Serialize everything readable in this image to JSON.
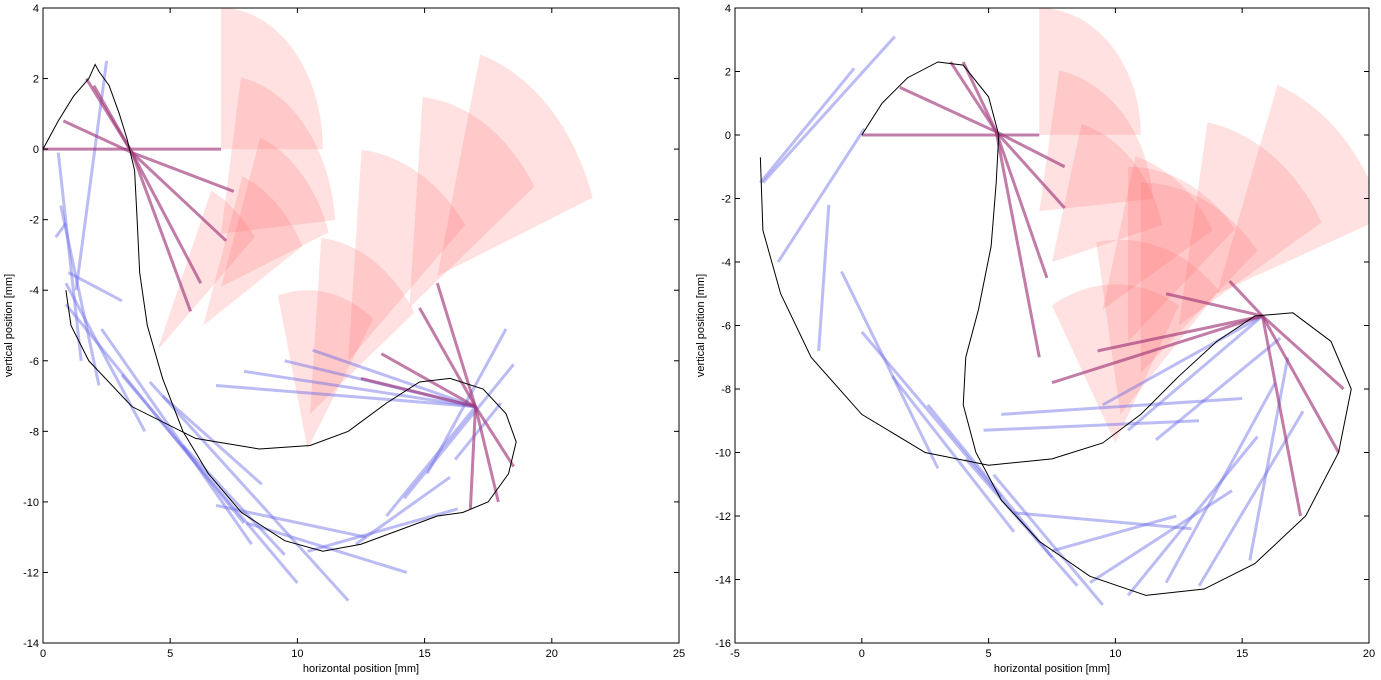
{
  "colors": {
    "background": "#ffffff",
    "axis": "#000000",
    "curve": "#000000",
    "blue_lines": "#6a6ae8",
    "purple_lines": "#a0387a",
    "red_wedges": "#ff6b6b"
  },
  "chart_data": [
    {
      "type": "line",
      "xlabel": "horizontal position [mm]",
      "ylabel": "vertical position [mm]",
      "xlim": [
        0,
        25
      ],
      "ylim": [
        -14,
        4
      ],
      "xticks": [
        0,
        5,
        10,
        15,
        20,
        25
      ],
      "yticks": [
        4,
        2,
        0,
        -2,
        -4,
        -6,
        -8,
        -10,
        -12,
        -14
      ],
      "grid": false,
      "curve": [
        [
          0,
          0
        ],
        [
          0.6,
          0.8
        ],
        [
          1.2,
          1.5
        ],
        [
          1.8,
          2.0
        ],
        [
          2.05,
          2.4
        ],
        [
          2.2,
          2.2
        ],
        [
          2.6,
          1.8
        ],
        [
          3.0,
          1.0
        ],
        [
          3.3,
          0.3
        ],
        [
          3.6,
          -0.6
        ],
        [
          3.7,
          -2
        ],
        [
          3.8,
          -3.5
        ],
        [
          4.1,
          -5
        ],
        [
          4.7,
          -6.5
        ],
        [
          5.5,
          -8
        ],
        [
          6.5,
          -9.2
        ],
        [
          7.8,
          -10.3
        ],
        [
          9.5,
          -11.1
        ],
        [
          11,
          -11.4
        ],
        [
          12.5,
          -11.2
        ],
        [
          14,
          -10.8
        ],
        [
          15.5,
          -10.4
        ],
        [
          16.5,
          -10.3
        ],
        [
          17.5,
          -10
        ],
        [
          18.3,
          -9.2
        ],
        [
          18.6,
          -8.3
        ],
        [
          18.2,
          -7.5
        ],
        [
          17.3,
          -6.8
        ],
        [
          16,
          -6.5
        ],
        [
          14.8,
          -6.6
        ],
        [
          13.5,
          -7.2
        ],
        [
          12,
          -8
        ],
        [
          10.5,
          -8.4
        ],
        [
          8.5,
          -8.5
        ],
        [
          6,
          -8.2
        ],
        [
          3.5,
          -7.3
        ],
        [
          1.8,
          -6
        ],
        [
          1.1,
          -5
        ],
        [
          0.9,
          -4
        ]
      ],
      "cones": [
        {
          "apex": [
            7,
            0
          ],
          "r": 4,
          "a1": 0,
          "a2": 90
        },
        {
          "apex": [
            7,
            -2.4
          ],
          "r": 4.5,
          "a1": 5,
          "a2": 80
        },
        {
          "apex": [
            7,
            -3.9
          ],
          "r": 4.5,
          "a1": 20,
          "a2": 70
        },
        {
          "apex": [
            6.3,
            -5
          ],
          "r": 4.5,
          "a1": 30,
          "a2": 70
        },
        {
          "apex": [
            4.5,
            -5.7
          ],
          "r": 5,
          "a1": 40,
          "a2": 65
        },
        {
          "apex": [
            10.4,
            -8.5
          ],
          "r": 4.5,
          "a1": 55,
          "a2": 105
        },
        {
          "apex": [
            10.5,
            -7.5
          ],
          "r": 5,
          "a1": 35,
          "a2": 85
        },
        {
          "apex": [
            12,
            -6
          ],
          "r": 6,
          "a1": 40,
          "a2": 85
        },
        {
          "apex": [
            14.4,
            -4.5
          ],
          "r": 6,
          "a1": 35,
          "a2": 85
        },
        {
          "apex": [
            15.5,
            -3.6
          ],
          "r": 6.5,
          "a1": 20,
          "a2": 75
        }
      ],
      "purple_lines": [
        [
          [
            0,
            0
          ],
          [
            7,
            0
          ]
        ],
        [
          [
            3.5,
            -0.1
          ],
          [
            7.5,
            -1.2
          ]
        ],
        [
          [
            3.5,
            -0.1
          ],
          [
            2,
            1.8
          ]
        ],
        [
          [
            3.5,
            -0.1
          ],
          [
            1.7,
            2
          ]
        ],
        [
          [
            3.5,
            -0.1
          ],
          [
            0.8,
            0.8
          ]
        ],
        [
          [
            3.5,
            -0.1
          ],
          [
            7.2,
            -2.6
          ]
        ],
        [
          [
            3.5,
            -0.1
          ],
          [
            6.2,
            -3.8
          ]
        ],
        [
          [
            3.5,
            -0.1
          ],
          [
            5.8,
            -4.6
          ]
        ],
        [
          [
            17,
            -7.3
          ],
          [
            18.5,
            -9
          ]
        ],
        [
          [
            17,
            -7.3
          ],
          [
            17.9,
            -10
          ]
        ],
        [
          [
            17,
            -7.3
          ],
          [
            16.8,
            -10.2
          ]
        ],
        [
          [
            17,
            -7.3
          ],
          [
            15.5,
            -3.8
          ]
        ],
        [
          [
            17,
            -7.3
          ],
          [
            14.8,
            -4.5
          ]
        ],
        [
          [
            17,
            -7.3
          ],
          [
            13.3,
            -5.8
          ]
        ],
        [
          [
            17,
            -7.3
          ],
          [
            12.5,
            -6.5
          ]
        ]
      ],
      "blue_lines": [
        [
          [
            1.3,
            -4
          ],
          [
            2.5,
            2.5
          ]
        ],
        [
          [
            0.7,
            -1.6
          ],
          [
            2.2,
            -6.7
          ]
        ],
        [
          [
            0.9,
            -2.1
          ],
          [
            0.5,
            -2.5
          ]
        ],
        [
          [
            1,
            -3.5
          ],
          [
            3.1,
            -4.3
          ]
        ],
        [
          [
            0.6,
            -0.1
          ],
          [
            1.5,
            -6
          ]
        ],
        [
          [
            0.9,
            -3.8
          ],
          [
            4,
            -8
          ]
        ],
        [
          [
            0.9,
            -4.4
          ],
          [
            7.9,
            -10.6
          ]
        ],
        [
          [
            2.3,
            -5.1
          ],
          [
            8.2,
            -11.2
          ]
        ],
        [
          [
            3.1,
            -6.4
          ],
          [
            10,
            -12.3
          ]
        ],
        [
          [
            4.2,
            -6.6
          ],
          [
            12,
            -12.8
          ]
        ],
        [
          [
            4.7,
            -7
          ],
          [
            8.6,
            -9.5
          ]
        ],
        [
          [
            5.5,
            -8.4
          ],
          [
            9.5,
            -11.5
          ]
        ],
        [
          [
            6.8,
            -10.1
          ],
          [
            12.7,
            -11
          ]
        ],
        [
          [
            8,
            -10.6
          ],
          [
            14.3,
            -12
          ]
        ],
        [
          [
            10.4,
            -11.4
          ],
          [
            16.3,
            -10.2
          ]
        ],
        [
          [
            12.3,
            -11.2
          ],
          [
            16,
            -9.3
          ]
        ],
        [
          [
            13.5,
            -10.4
          ],
          [
            17,
            -7.3
          ]
        ],
        [
          [
            14.2,
            -9.9
          ],
          [
            18.5,
            -6.1
          ]
        ],
        [
          [
            15.1,
            -9.2
          ],
          [
            18.2,
            -5.1
          ]
        ],
        [
          [
            16.2,
            -8.8
          ],
          [
            18,
            -7.2
          ]
        ],
        [
          [
            17,
            -7.3
          ],
          [
            9.5,
            -6
          ]
        ],
        [
          [
            17,
            -7.3
          ],
          [
            10.6,
            -5.7
          ]
        ],
        [
          [
            17,
            -7.3
          ],
          [
            6.8,
            -6.7
          ]
        ],
        [
          [
            17,
            -7.3
          ],
          [
            7.9,
            -6.3
          ]
        ]
      ]
    },
    {
      "type": "line",
      "xlabel": "horizontal position [mm]",
      "ylabel": "vertical position [mm]",
      "xlim": [
        -5,
        20
      ],
      "ylim": [
        -16,
        4
      ],
      "xticks": [
        -5,
        0,
        5,
        10,
        15,
        20
      ],
      "yticks": [
        4,
        2,
        0,
        -2,
        -4,
        -6,
        -8,
        -10,
        -12,
        -14,
        -16
      ],
      "grid": false,
      "curve": [
        [
          0,
          0
        ],
        [
          0.8,
          1
        ],
        [
          1.8,
          1.8
        ],
        [
          3,
          2.3
        ],
        [
          4,
          2.2
        ],
        [
          5,
          1.2
        ],
        [
          5.4,
          0
        ],
        [
          5.3,
          -1.5
        ],
        [
          5.1,
          -3.5
        ],
        [
          4.6,
          -5.5
        ],
        [
          4.1,
          -7
        ],
        [
          4,
          -8.5
        ],
        [
          4.5,
          -10
        ],
        [
          5.5,
          -11.5
        ],
        [
          7,
          -12.8
        ],
        [
          9,
          -13.9
        ],
        [
          11.2,
          -14.5
        ],
        [
          13.5,
          -14.3
        ],
        [
          15.5,
          -13.5
        ],
        [
          17.5,
          -12
        ],
        [
          18.8,
          -10
        ],
        [
          19.3,
          -8
        ],
        [
          18.5,
          -6.5
        ],
        [
          17,
          -5.6
        ],
        [
          15.5,
          -5.7
        ],
        [
          14,
          -6.5
        ],
        [
          12.5,
          -7.6
        ],
        [
          11,
          -8.8
        ],
        [
          9.5,
          -9.7
        ],
        [
          7.5,
          -10.2
        ],
        [
          5,
          -10.4
        ],
        [
          2.5,
          -10
        ],
        [
          0,
          -8.8
        ],
        [
          -2,
          -7
        ],
        [
          -3.2,
          -5
        ],
        [
          -3.9,
          -3
        ],
        [
          -4,
          -0.7
        ]
      ],
      "cones": [
        {
          "apex": [
            7,
            0
          ],
          "r": 4,
          "a1": 0,
          "a2": 90
        },
        {
          "apex": [
            7,
            -2.4
          ],
          "r": 4.5,
          "a1": 5,
          "a2": 80
        },
        {
          "apex": [
            7.5,
            -4
          ],
          "r": 4.5,
          "a1": 15,
          "a2": 75
        },
        {
          "apex": [
            9.5,
            -5.5
          ],
          "r": 5,
          "a1": 30,
          "a2": 75
        },
        {
          "apex": [
            10.5,
            -6.5
          ],
          "r": 5.5,
          "a1": 40,
          "a2": 90
        },
        {
          "apex": [
            10,
            -9.7
          ],
          "r": 5,
          "a1": 60,
          "a2": 120
        },
        {
          "apex": [
            10.2,
            -8.8
          ],
          "r": 5.5,
          "a1": 45,
          "a2": 100
        },
        {
          "apex": [
            11,
            -7.5
          ],
          "r": 6,
          "a1": 40,
          "a2": 90
        },
        {
          "apex": [
            12.5,
            -6
          ],
          "r": 6.5,
          "a1": 30,
          "a2": 80
        },
        {
          "apex": [
            14,
            -5
          ],
          "r": 7,
          "a1": 20,
          "a2": 70
        }
      ],
      "purple_lines": [
        [
          [
            0,
            0
          ],
          [
            7,
            0
          ]
        ],
        [
          [
            5.3,
            0.1
          ],
          [
            8,
            -1
          ]
        ],
        [
          [
            5.3,
            0.1
          ],
          [
            3.5,
            2.3
          ]
        ],
        [
          [
            5.3,
            0.1
          ],
          [
            4,
            2.3
          ]
        ],
        [
          [
            5.3,
            0.1
          ],
          [
            1.5,
            1.5
          ]
        ],
        [
          [
            5.3,
            0.1
          ],
          [
            8,
            -2.3
          ]
        ],
        [
          [
            5.3,
            0.1
          ],
          [
            7.3,
            -4.5
          ]
        ],
        [
          [
            5.3,
            0.1
          ],
          [
            7,
            -7
          ]
        ],
        [
          [
            15.8,
            -5.7
          ],
          [
            19,
            -8
          ]
        ],
        [
          [
            15.8,
            -5.7
          ],
          [
            18.8,
            -10
          ]
        ],
        [
          [
            15.8,
            -5.7
          ],
          [
            17.3,
            -12
          ]
        ],
        [
          [
            15.8,
            -5.7
          ],
          [
            14.5,
            -4.6
          ]
        ],
        [
          [
            15.8,
            -5.7
          ],
          [
            12,
            -5
          ]
        ],
        [
          [
            15.8,
            -5.7
          ],
          [
            9.3,
            -6.8
          ]
        ],
        [
          [
            15.8,
            -5.7
          ],
          [
            7.5,
            -7.8
          ]
        ]
      ],
      "blue_lines": [
        [
          [
            -4,
            -1.5
          ],
          [
            -0.3,
            2.1
          ]
        ],
        [
          [
            -3.3,
            -4
          ],
          [
            0.1,
            0.2
          ]
        ],
        [
          [
            -3.9,
            -1.5
          ],
          [
            1.3,
            3.1
          ]
        ],
        [
          [
            -1.7,
            -6.8
          ],
          [
            -1.3,
            -2.2
          ]
        ],
        [
          [
            -0.8,
            -4.3
          ],
          [
            3,
            -10.5
          ]
        ],
        [
          [
            0,
            -6.2
          ],
          [
            5.5,
            -11.4
          ]
        ],
        [
          [
            1.2,
            -7.6
          ],
          [
            6,
            -12.5
          ]
        ],
        [
          [
            2.6,
            -8.5
          ],
          [
            7.5,
            -13.3
          ]
        ],
        [
          [
            4.1,
            -10.2
          ],
          [
            8.5,
            -14.2
          ]
        ],
        [
          [
            5.2,
            -10.7
          ],
          [
            9.5,
            -14.8
          ]
        ],
        [
          [
            6,
            -11.9
          ],
          [
            13,
            -12.4
          ]
        ],
        [
          [
            7.5,
            -13.1
          ],
          [
            12.4,
            -12
          ]
        ],
        [
          [
            9,
            -14.1
          ],
          [
            14.6,
            -11.2
          ]
        ],
        [
          [
            10.5,
            -14.5
          ],
          [
            15.6,
            -9.5
          ]
        ],
        [
          [
            12,
            -14.1
          ],
          [
            16.3,
            -7.8
          ]
        ],
        [
          [
            13.3,
            -14.2
          ],
          [
            17.4,
            -8.7
          ]
        ],
        [
          [
            15.3,
            -13.4
          ],
          [
            16.8,
            -7
          ]
        ],
        [
          [
            11.6,
            -9.6
          ],
          [
            16.5,
            -6.4
          ]
        ],
        [
          [
            10.5,
            -9.3
          ],
          [
            15.8,
            -5.7
          ]
        ],
        [
          [
            9.5,
            -8.5
          ],
          [
            15.8,
            -5.7
          ]
        ],
        [
          [
            5.5,
            -8.8
          ],
          [
            15,
            -8.3
          ]
        ],
        [
          [
            4.8,
            -9.3
          ],
          [
            13.3,
            -9
          ]
        ]
      ]
    }
  ]
}
